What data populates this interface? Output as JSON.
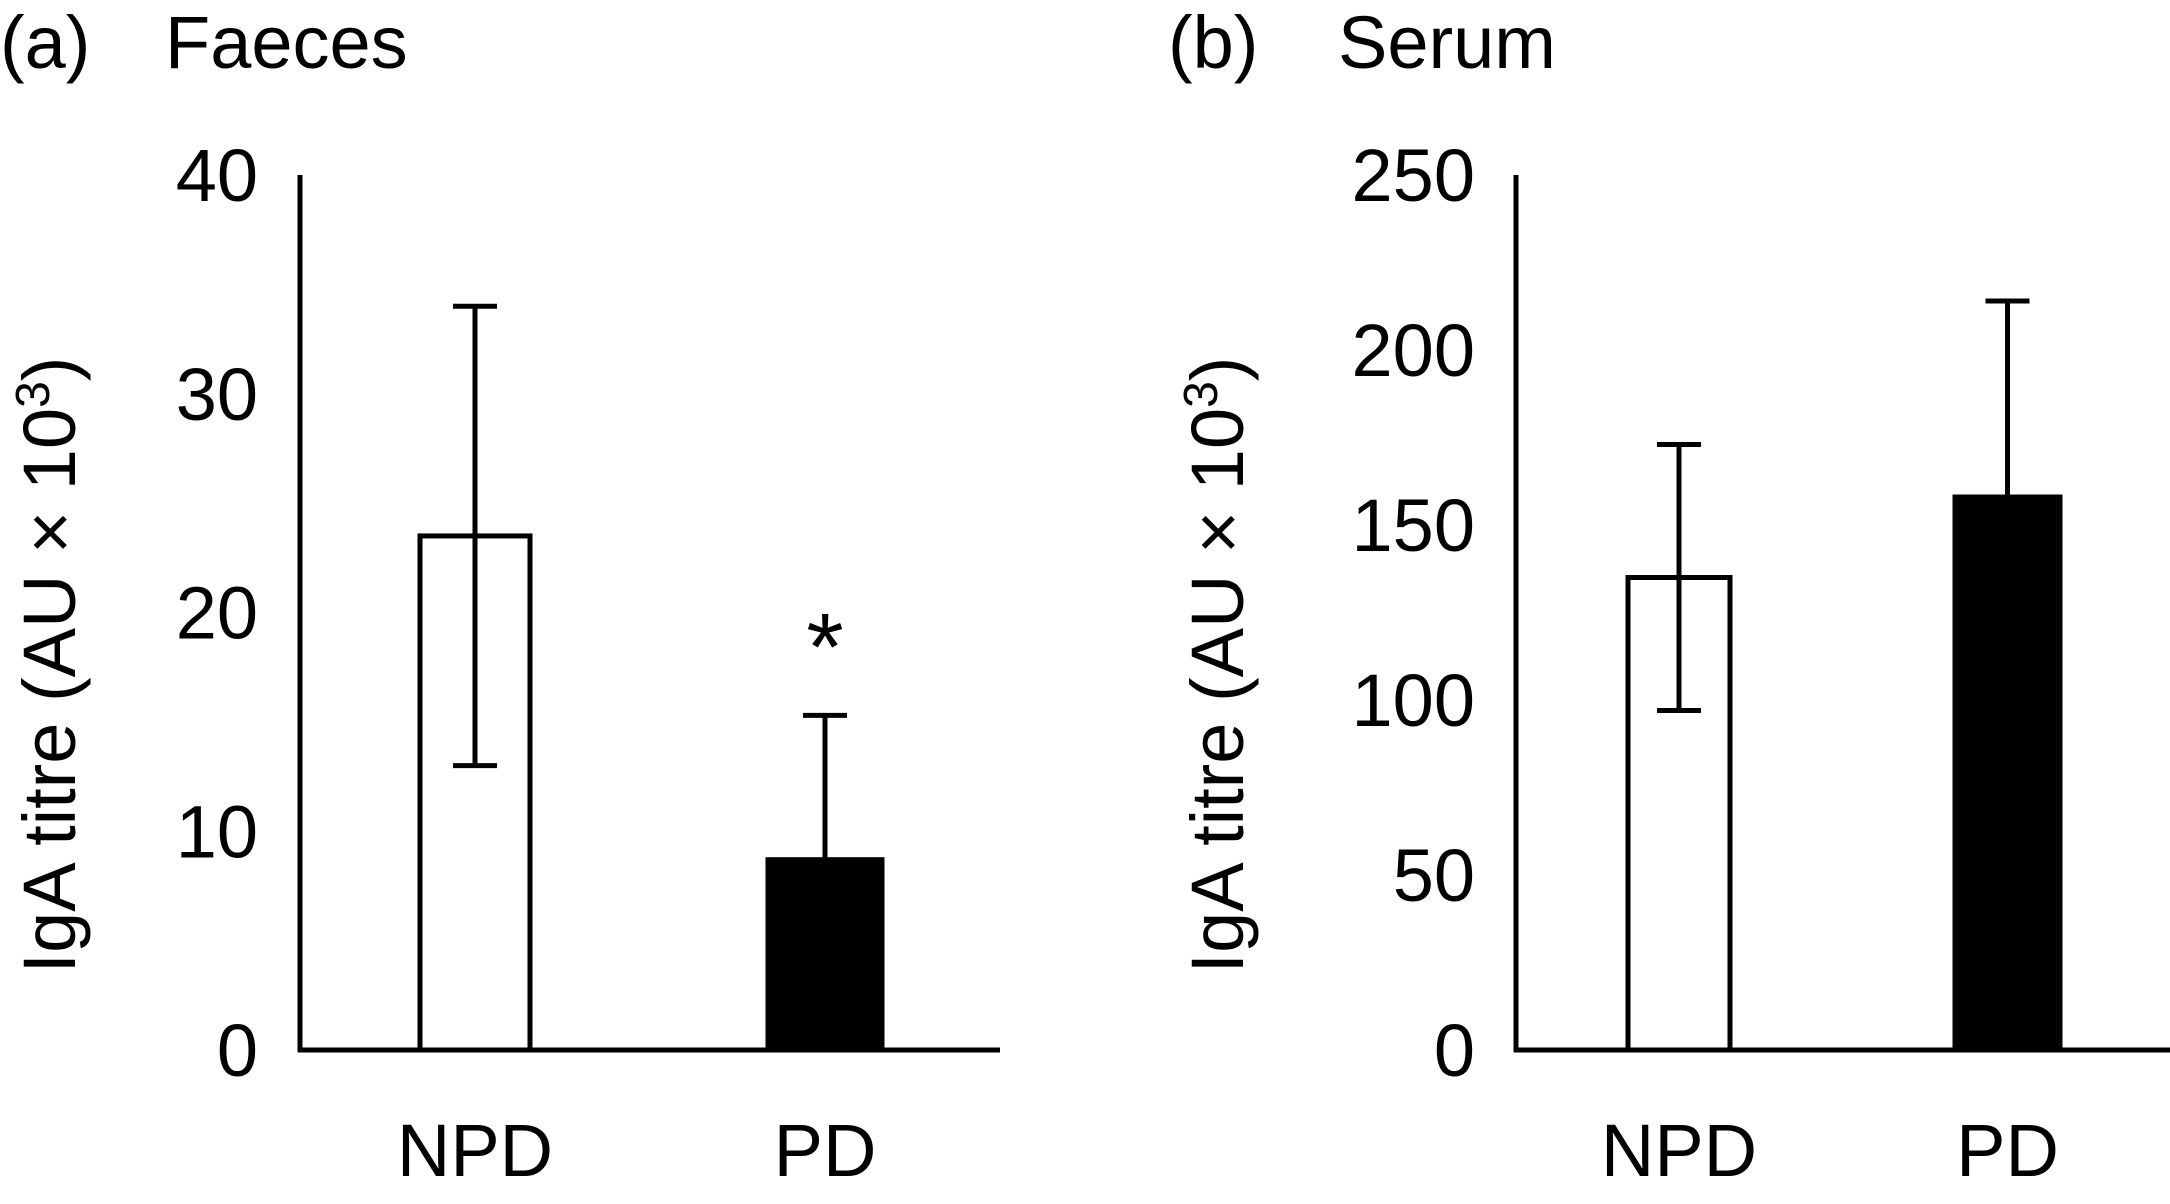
{
  "chart_data": [
    {
      "type": "bar",
      "panel_label": "(a)",
      "title": "Faeces",
      "ylabel": "IgA titre (AU × 10",
      "ylabel_sup": "3",
      "ylabel_close": ")",
      "ylim": [
        0,
        40
      ],
      "yticks": [
        0,
        10,
        20,
        30,
        40
      ],
      "ytick_labels": [
        "0",
        "10",
        "20",
        "30",
        "40"
      ],
      "grid": false,
      "categories": [
        "NPD",
        "PD"
      ],
      "values": [
        23.5,
        8.7
      ],
      "error_upper": [
        10.5,
        6.6
      ],
      "error_lower": [
        10.5,
        6.6
      ],
      "bar_fill": [
        "#ffffff",
        "#000000"
      ],
      "annotations": [
        {
          "category": "PD",
          "text": "*"
        }
      ]
    },
    {
      "type": "bar",
      "panel_label": "(b)",
      "title": "Serum",
      "ylabel": "IgA titre (AU × 10",
      "ylabel_sup": "3",
      "ylabel_close": ")",
      "ylim": [
        0,
        250
      ],
      "yticks": [
        0,
        50,
        100,
        150,
        200,
        250
      ],
      "ytick_labels": [
        "0",
        "50",
        "100",
        "150",
        "200",
        "250"
      ],
      "grid": false,
      "categories": [
        "NPD",
        "PD"
      ],
      "values": [
        135,
        158
      ],
      "error_upper": [
        38,
        56
      ],
      "error_lower": [
        38,
        0
      ],
      "bar_fill": [
        "#ffffff",
        "#000000"
      ],
      "annotations": []
    }
  ]
}
